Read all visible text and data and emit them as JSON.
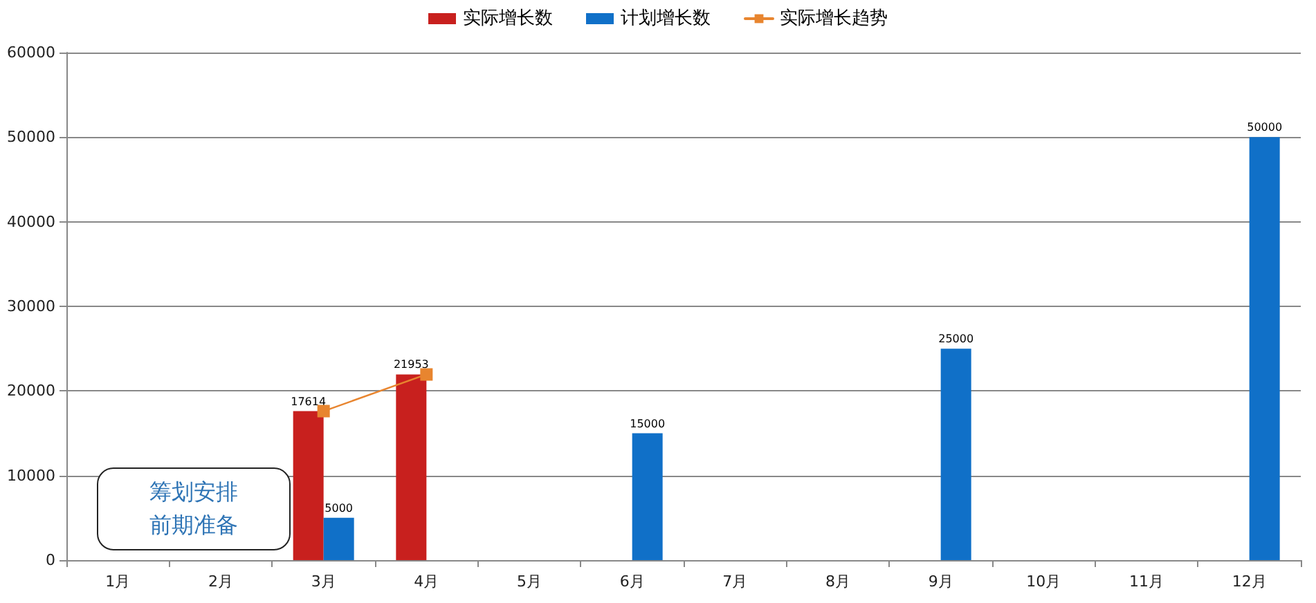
{
  "chart_data": {
    "type": "bar",
    "categories": [
      "1月",
      "2月",
      "3月",
      "4月",
      "5月",
      "6月",
      "7月",
      "8月",
      "9月",
      "10月",
      "11月",
      "12月"
    ],
    "ylim": [
      0,
      60000
    ],
    "yticks": [
      0,
      10000,
      20000,
      30000,
      40000,
      50000,
      60000
    ],
    "grid": "y",
    "legend": "top",
    "annotations": [
      "筹划安排前期准备"
    ],
    "series": [
      {
        "name": "实际增长数",
        "color": "#c8201e",
        "values": [
          null,
          null,
          17614,
          21953,
          null,
          null,
          null,
          null,
          null,
          null,
          null,
          null
        ],
        "value_labels": [
          null,
          null,
          "17614",
          "21953",
          null,
          null,
          null,
          null,
          null,
          null,
          null,
          null
        ]
      },
      {
        "name": "计划增长数",
        "color": "#1070c8",
        "values": [
          null,
          null,
          5000,
          null,
          null,
          15000,
          null,
          null,
          25000,
          null,
          null,
          50000
        ],
        "value_labels": [
          null,
          null,
          "5000",
          null,
          null,
          "15000",
          null,
          null,
          "25000",
          null,
          null,
          "50000"
        ]
      },
      {
        "name": "实际增长趋势",
        "type": "line",
        "color": "#e8852f",
        "marker": "square",
        "line_style": "solid",
        "values": [
          null,
          null,
          17614,
          21953,
          null,
          null,
          null,
          null,
          null,
          null,
          null,
          null
        ]
      }
    ]
  }
}
